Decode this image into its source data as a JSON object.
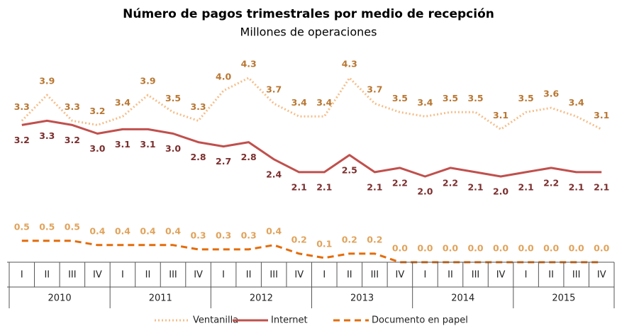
{
  "chart_data": {
    "type": "line",
    "title": "Número de pagos trimestrales por medio de recepción",
    "subtitle": "Millones de operaciones",
    "categories": [
      "I",
      "II",
      "III",
      "IV",
      "I",
      "II",
      "III",
      "IV",
      "I",
      "II",
      "III",
      "IV",
      "I",
      "II",
      "III",
      "IV",
      "I",
      "II",
      "III",
      "IV",
      "I",
      "II",
      "III",
      "IV"
    ],
    "x_groups": [
      "2010",
      "2011",
      "2012",
      "2013",
      "2014",
      "2015"
    ],
    "series": [
      {
        "name": "Ventanilla",
        "color": "#F5BE8A",
        "label_color": "#B87733",
        "style": "dotted",
        "label_position": "above",
        "values": [
          3.3,
          3.9,
          3.3,
          3.2,
          3.4,
          3.9,
          3.5,
          3.3,
          4.0,
          4.3,
          3.7,
          3.4,
          3.4,
          4.3,
          3.7,
          3.5,
          3.4,
          3.5,
          3.5,
          3.1,
          3.5,
          3.6,
          3.4,
          3.1
        ],
        "value_labels": [
          "3.3",
          "3.9",
          "3.3",
          "3.2",
          "3.4",
          "3.9",
          "3.5",
          "3.3",
          "4.0",
          "4.3",
          "3.7",
          "3.4",
          "3.4",
          "4.3",
          "3.7",
          "3.5",
          "3.4",
          "3.5",
          "3.5",
          "3.1",
          "3.5",
          "3.6",
          "3.4",
          "3.1"
        ]
      },
      {
        "name": "Internet",
        "color": "#C0504D",
        "label_color": "#7B2E2E",
        "style": "solid",
        "label_position": "below",
        "values": [
          3.2,
          3.3,
          3.2,
          3.0,
          3.1,
          3.1,
          3.0,
          2.8,
          2.7,
          2.8,
          2.4,
          2.1,
          2.1,
          2.5,
          2.1,
          2.2,
          2.0,
          2.2,
          2.1,
          2.0,
          2.1,
          2.2,
          2.1,
          2.1
        ],
        "value_labels": [
          "3.2",
          "3.3",
          "3.2",
          "3.0",
          "3.1",
          "3.1",
          "3.0",
          "2.8",
          "2.7",
          "2.8",
          "2.4",
          "2.1",
          "2.1",
          "2.5",
          "2.1",
          "2.2",
          "2.0",
          "2.2",
          "2.1",
          "2.0",
          "2.1",
          "2.2",
          "2.1",
          "2.1"
        ]
      },
      {
        "name": "Documento en papel",
        "color": "#E46C0A",
        "label_color": "#E0A35C",
        "style": "dashed",
        "label_position": "above",
        "values": [
          0.5,
          0.5,
          0.5,
          0.4,
          0.4,
          0.4,
          0.4,
          0.3,
          0.3,
          0.3,
          0.4,
          0.2,
          0.1,
          0.2,
          0.2,
          0.0,
          0.0,
          0.0,
          0.0,
          0.0,
          0.0,
          0.0,
          0.0,
          0.0
        ],
        "value_labels": [
          "0.5",
          "0.5",
          "0.5",
          "0.4",
          "0.4",
          "0.4",
          "0.4",
          "0.3",
          "0.3",
          "0.3",
          "0.4",
          "0.2",
          "0.1",
          "0.2",
          "0.2",
          "0.0",
          "0.0",
          "0.0",
          "0.0",
          "0.0",
          "0.0",
          "0.0",
          "0.0",
          "0.0"
        ]
      }
    ]
  }
}
